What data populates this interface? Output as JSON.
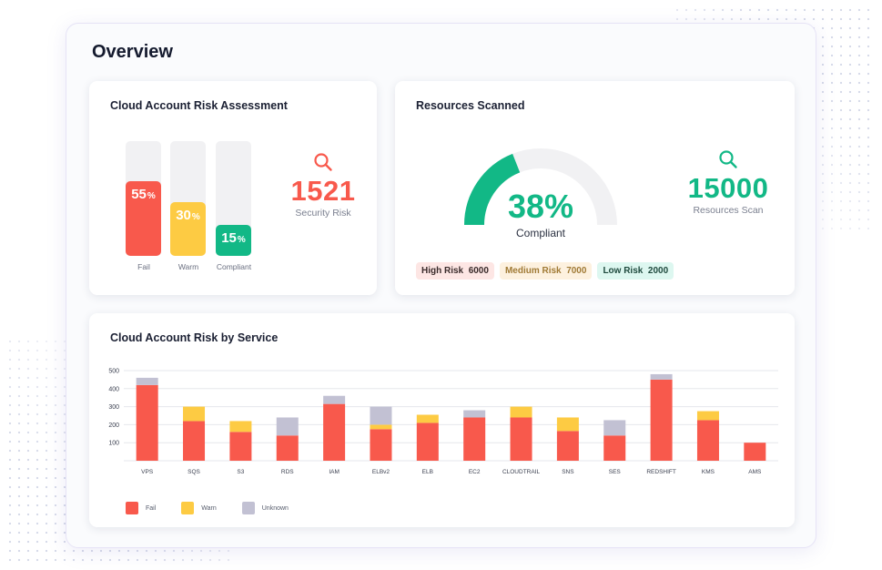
{
  "page": {
    "title": "Overview"
  },
  "colors": {
    "fail": "#f8594c",
    "warn": "#fdcb43",
    "compliant": "#12b886",
    "unknown": "#c2c1d3",
    "track": "#f1f1f3"
  },
  "risk_assessment": {
    "title": "Cloud Account Risk Assessment",
    "bars": [
      {
        "name": "Fail",
        "value": "55",
        "unit": "%",
        "fraction": 0.65,
        "color": "#f8594c"
      },
      {
        "name": "Warm",
        "value": "30",
        "unit": "%",
        "fraction": 0.47,
        "color": "#fdcb43"
      },
      {
        "name": "Compliant",
        "value": "15",
        "unit": "%",
        "fraction": 0.27,
        "color": "#12b886"
      }
    ],
    "stat": {
      "value": "1521",
      "caption": "Security Risk",
      "icon": "search-icon"
    }
  },
  "resources": {
    "title": "Resources Scanned",
    "gauge": {
      "value": "38%",
      "fraction": 0.38,
      "caption": "Compliant"
    },
    "stat": {
      "value": "15000",
      "caption": "Resources Scan",
      "icon": "search-icon"
    },
    "chips": [
      {
        "label": "High Risk",
        "value": "6000"
      },
      {
        "label": "Medium Risk",
        "value": "7000"
      },
      {
        "label": "Low Risk",
        "value": "2000"
      }
    ]
  },
  "by_service": {
    "title": "Cloud Account Risk by Service",
    "legend": [
      {
        "label": "Fail",
        "color": "#f8594c"
      },
      {
        "label": "Warn",
        "color": "#fdcb43"
      },
      {
        "label": "Unknown",
        "color": "#c2c1d3"
      }
    ]
  },
  "chart_data": {
    "type": "bar",
    "stacked": true,
    "title": "Cloud Account Risk by Service",
    "categories": [
      "VPS",
      "SQS",
      "S3",
      "RDS",
      "IAM",
      "ELBv2",
      "ELB",
      "EC2",
      "CLOUDTRAIL",
      "SNS",
      "SES",
      "REDSHIFT",
      "KMS",
      "AMS"
    ],
    "series": [
      {
        "name": "Fail",
        "color": "#f8594c",
        "values": [
          420,
          220,
          160,
          140,
          315,
          175,
          210,
          240,
          240,
          165,
          140,
          450,
          225,
          100
        ]
      },
      {
        "name": "Warn",
        "color": "#fdcb43",
        "values": [
          0,
          80,
          60,
          0,
          0,
          25,
          45,
          0,
          60,
          75,
          0,
          0,
          50,
          0
        ]
      },
      {
        "name": "Unknown",
        "color": "#c2c1d3",
        "values": [
          40,
          0,
          0,
          100,
          45,
          100,
          0,
          40,
          0,
          0,
          85,
          30,
          0,
          0
        ]
      }
    ],
    "yticks": [
      0,
      100,
      200,
      300,
      400,
      500
    ],
    "ytick_labels": [
      "",
      "100",
      "200",
      "300",
      "400",
      "500"
    ],
    "ylim": [
      0,
      500
    ],
    "grid": true,
    "legend": "bottom-left"
  }
}
